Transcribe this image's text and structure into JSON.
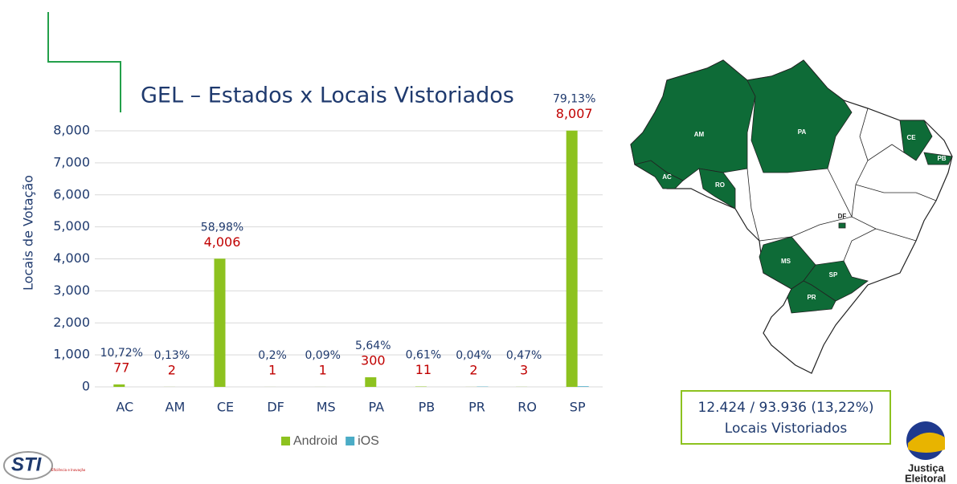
{
  "chart_data": {
    "type": "bar",
    "title": "GEL – Estados x Locais Vistoriados",
    "y_label": "Locais de Votação",
    "categories": [
      "AC",
      "AM",
      "CE",
      "DF",
      "MS",
      "PA",
      "PB",
      "PR",
      "RO",
      "SP"
    ],
    "series": [
      {
        "name": "Android",
        "color": "#8dc21f",
        "values": [
          77,
          2,
          4006,
          1,
          1,
          300,
          11,
          2,
          3,
          8007
        ],
        "value_labels": [
          "77",
          "2",
          "4,006",
          "1",
          "1",
          "300",
          "11",
          "2",
          "3",
          "8,007"
        ]
      },
      {
        "name": "iOS",
        "color": "#4bacc6",
        "values": [
          0,
          0,
          0,
          0,
          0,
          0,
          0,
          10,
          0,
          20
        ]
      }
    ],
    "percent_labels": [
      "10,72%",
      "0,13%",
      "58,98%",
      "0,2%",
      "0,09%",
      "5,64%",
      "0,61%",
      "0,04%",
      "0,47%",
      "79,13%"
    ],
    "ylim": [
      0,
      8000
    ],
    "yticks": [
      0,
      {
        "value": 1000,
        "label": "1,000"
      },
      {
        "value": 2000,
        "label": "2,000"
      },
      {
        "value": 3000,
        "label": "3,000"
      },
      {
        "value": 4000,
        "label": "4,000"
      },
      {
        "value": 5000,
        "label": "5,000"
      },
      {
        "value": 6000,
        "label": "6,000"
      },
      {
        "value": 7000,
        "label": "7,000"
      },
      {
        "value": 8000,
        "label": "8,000"
      }
    ],
    "grid": true,
    "legend": "bottom"
  },
  "map": {
    "states": [
      "AM",
      "PA",
      "CE",
      "PB",
      "AC",
      "RO",
      "DF",
      "MS",
      "SP",
      "PR"
    ]
  },
  "summary": {
    "line1": "12.424 / 93.936 (13,22%)",
    "line2": "Locais Vistoriados"
  },
  "logos": {
    "left": "STI",
    "left_sub": "Eficiência e Inovação",
    "right1": "Justiça",
    "right2": "Eleitoral"
  }
}
